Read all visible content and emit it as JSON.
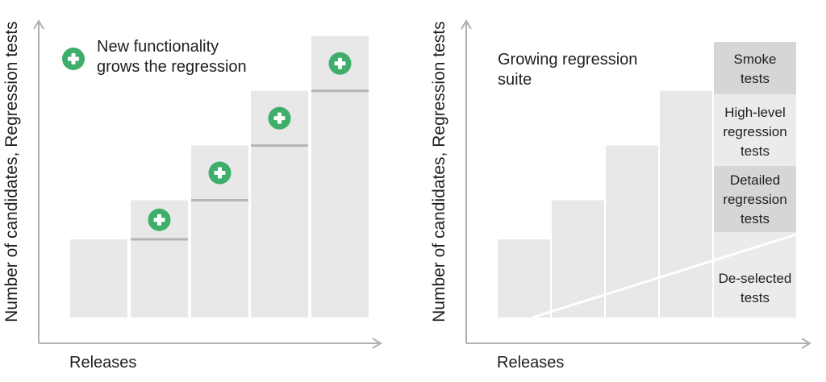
{
  "left_panel": {
    "y_axis_label": "Number of candidates, Regression tests",
    "x_axis_label": "Releases",
    "legend_text": "New functionality\ngrows the regression",
    "bar_heights": [
      1,
      1.5,
      2.2,
      2.9,
      3.6
    ],
    "plus_icon": "plus-circle-icon",
    "colors": {
      "bar": "#e8e8e8",
      "divider": "#b5b5b5",
      "plus": "#3fae6a",
      "axis": "#b0b0b0"
    }
  },
  "right_panel": {
    "y_axis_label": "Number of candidates, Regression tests",
    "x_axis_label": "Releases",
    "title": "Growing regression\nsuite",
    "bar_heights": [
      1,
      1.5,
      2.2,
      2.9
    ],
    "segments": [
      {
        "label": "Smoke\ntests",
        "color": "#d6d6d6"
      },
      {
        "label": "High-level\nregression\ntests",
        "color": "#ebebeb"
      },
      {
        "label": "Detailed\nregression\ntests",
        "color": "#d6d6d6"
      },
      {
        "label": "De-selected\ntests",
        "color": "#ebebeb"
      }
    ],
    "colors": {
      "bar": "#e8e8e8",
      "line": "#ffffff",
      "axis": "#b0b0b0"
    }
  }
}
